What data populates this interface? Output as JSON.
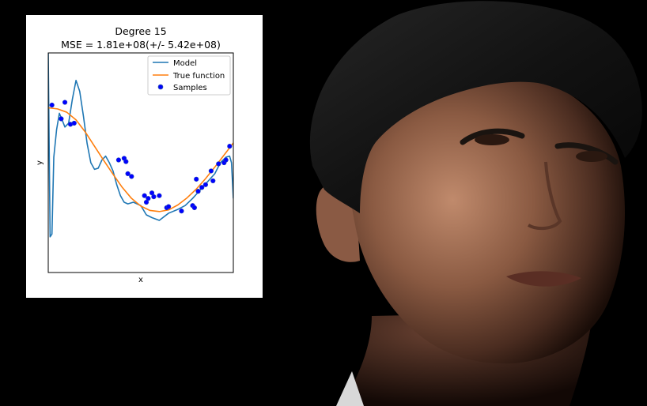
{
  "colors": {
    "background": "#000000",
    "panel": "#ffffff",
    "model": "#1f77b4",
    "true_function": "#ff7f0e",
    "samples": "#0000ff"
  },
  "chart_data": {
    "type": "line",
    "title": "Degree 15",
    "subtitle": "MSE = 1.81e+08(+/- 5.42e+08)",
    "xlabel": "x",
    "ylabel": "y",
    "xlim": [
      0,
      1
    ],
    "ylim": [
      -2,
      2
    ],
    "grid": false,
    "legend": {
      "position": "top-right",
      "entries": [
        "Model",
        "True function",
        "Samples"
      ]
    },
    "ticks": {
      "x": [],
      "y": []
    },
    "series": [
      {
        "name": "Model",
        "kind": "line",
        "x": [
          0.0,
          0.01,
          0.02,
          0.03,
          0.045,
          0.06,
          0.075,
          0.09,
          0.11,
          0.13,
          0.15,
          0.17,
          0.19,
          0.21,
          0.23,
          0.25,
          0.27,
          0.29,
          0.31,
          0.33,
          0.35,
          0.37,
          0.39,
          0.41,
          0.43,
          0.46,
          0.5,
          0.53,
          0.56,
          0.6,
          0.65,
          0.7,
          0.74,
          0.78,
          0.82,
          0.86,
          0.9,
          0.93,
          0.96,
          0.98,
          0.99,
          1.0
        ],
        "y": [
          2.0,
          -1.35,
          -1.3,
          0.1,
          0.6,
          0.9,
          0.78,
          0.65,
          0.72,
          1.15,
          1.5,
          1.3,
          0.85,
          0.35,
          0.0,
          -0.12,
          -0.1,
          0.05,
          0.12,
          0.0,
          -0.15,
          -0.4,
          -0.6,
          -0.72,
          -0.75,
          -0.72,
          -0.78,
          -0.95,
          -1.0,
          -1.05,
          -0.92,
          -0.85,
          -0.78,
          -0.65,
          -0.5,
          -0.35,
          -0.2,
          0.0,
          0.1,
          0.12,
          0.0,
          -0.65
        ]
      },
      {
        "name": "True function",
        "kind": "line",
        "x": [
          0.0,
          0.05,
          0.1,
          0.15,
          0.2,
          0.25,
          0.3,
          0.35,
          0.4,
          0.45,
          0.5,
          0.55,
          0.6,
          0.65,
          0.7,
          0.75,
          0.8,
          0.85,
          0.9,
          0.95,
          1.0
        ],
        "y": [
          1.0,
          0.98,
          0.92,
          0.78,
          0.56,
          0.3,
          0.04,
          -0.21,
          -0.45,
          -0.65,
          -0.79,
          -0.87,
          -0.89,
          -0.86,
          -0.77,
          -0.64,
          -0.48,
          -0.29,
          -0.08,
          0.14,
          0.36
        ]
      },
      {
        "name": "Samples",
        "kind": "scatter",
        "x": [
          0.02,
          0.07,
          0.09,
          0.12,
          0.14,
          0.38,
          0.41,
          0.42,
          0.43,
          0.45,
          0.52,
          0.53,
          0.54,
          0.56,
          0.57,
          0.6,
          0.64,
          0.65,
          0.72,
          0.78,
          0.79,
          0.8,
          0.81,
          0.83,
          0.85,
          0.88,
          0.89,
          0.92,
          0.95,
          0.96,
          0.98
        ],
        "y": [
          1.05,
          0.8,
          1.1,
          0.7,
          0.72,
          0.05,
          0.08,
          0.02,
          -0.2,
          -0.25,
          -0.6,
          -0.72,
          -0.65,
          -0.55,
          -0.62,
          -0.6,
          -0.82,
          -0.8,
          -0.88,
          -0.78,
          -0.82,
          -0.3,
          -0.52,
          -0.45,
          -0.4,
          -0.15,
          -0.33,
          -0.02,
          0.0,
          0.05,
          0.3
        ]
      }
    ]
  }
}
